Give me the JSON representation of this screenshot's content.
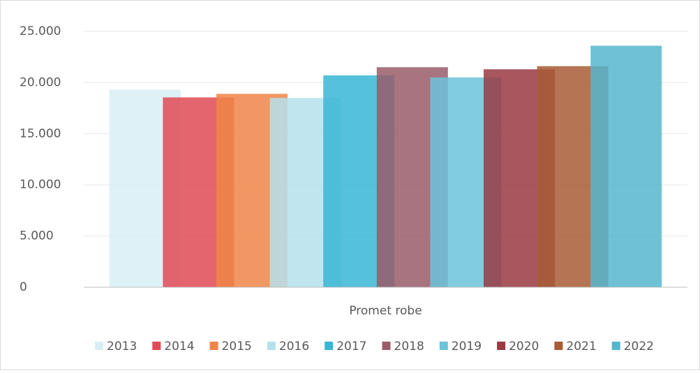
{
  "chart_data": {
    "type": "bar",
    "categories": [
      "Promet robe"
    ],
    "series": [
      {
        "name": "2013",
        "color": "#d7eef5",
        "values": [
          19300
        ]
      },
      {
        "name": "2014",
        "color": "#e04a55",
        "values": [
          18550
        ]
      },
      {
        "name": "2015",
        "color": "#f08548",
        "values": [
          18900
        ]
      },
      {
        "name": "2016",
        "color": "#b6e1ec",
        "values": [
          18500
        ]
      },
      {
        "name": "2017",
        "color": "#38b6d3",
        "values": [
          20700
        ]
      },
      {
        "name": "2018",
        "color": "#985c6a",
        "values": [
          21500
        ]
      },
      {
        "name": "2019",
        "color": "#6cc3da",
        "values": [
          20500
        ]
      },
      {
        "name": "2020",
        "color": "#9a3a43",
        "values": [
          21300
        ]
      },
      {
        "name": "2021",
        "color": "#a85c36",
        "values": [
          21600
        ]
      },
      {
        "name": "2022",
        "color": "#56b6ce",
        "values": [
          23600
        ]
      }
    ],
    "ylim": [
      0,
      25000
    ],
    "yticks": [
      0,
      {
        "value": 5000,
        "label": "5.000"
      },
      {
        "value": 10000,
        "label": "10.000"
      },
      {
        "value": 15000,
        "label": "15.000"
      },
      {
        "value": 20000,
        "label": "20.000"
      },
      {
        "value": 25000,
        "label": "25.000"
      }
    ],
    "grid": true,
    "legend": "bottom"
  }
}
